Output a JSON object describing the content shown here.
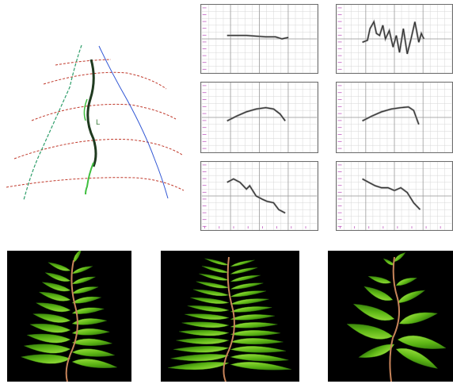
{
  "figure": {
    "sketch": {
      "label": "L",
      "colors": {
        "leaf_guides": "#c0392b",
        "leaf_guide_dots": "#e6c0c8",
        "left_outline": "#2e9e6a",
        "right_outline": "#2f55d4",
        "stem_dark": "#1f3a1f",
        "stem_light": "#3fbf3f"
      }
    },
    "graphs": [
      {
        "id": "graph-top-left",
        "curve": [
          [
            0.0,
            0.45
          ],
          [
            0.15,
            0.45
          ],
          [
            0.3,
            0.45
          ],
          [
            0.45,
            0.46
          ],
          [
            0.6,
            0.47
          ],
          [
            0.75,
            0.47
          ],
          [
            0.85,
            0.5
          ],
          [
            0.95,
            0.48
          ]
        ]
      },
      {
        "id": "graph-top-right",
        "curve": [
          [
            0.0,
            0.55
          ],
          [
            0.08,
            0.52
          ],
          [
            0.12,
            0.35
          ],
          [
            0.18,
            0.25
          ],
          [
            0.22,
            0.42
          ],
          [
            0.27,
            0.45
          ],
          [
            0.32,
            0.3
          ],
          [
            0.36,
            0.5
          ],
          [
            0.42,
            0.38
          ],
          [
            0.48,
            0.62
          ],
          [
            0.53,
            0.45
          ],
          [
            0.58,
            0.7
          ],
          [
            0.64,
            0.35
          ],
          [
            0.7,
            0.72
          ],
          [
            0.76,
            0.5
          ],
          [
            0.82,
            0.25
          ],
          [
            0.88,
            0.55
          ],
          [
            0.92,
            0.42
          ],
          [
            0.96,
            0.5
          ]
        ]
      },
      {
        "id": "graph-middle-left",
        "curve": [
          [
            0.0,
            0.55
          ],
          [
            0.15,
            0.48
          ],
          [
            0.3,
            0.42
          ],
          [
            0.45,
            0.38
          ],
          [
            0.6,
            0.36
          ],
          [
            0.72,
            0.38
          ],
          [
            0.82,
            0.45
          ],
          [
            0.9,
            0.55
          ]
        ]
      },
      {
        "id": "graph-middle-right",
        "curve": [
          [
            0.0,
            0.55
          ],
          [
            0.15,
            0.48
          ],
          [
            0.3,
            0.42
          ],
          [
            0.45,
            0.38
          ],
          [
            0.6,
            0.36
          ],
          [
            0.72,
            0.35
          ],
          [
            0.8,
            0.4
          ],
          [
            0.88,
            0.6
          ]
        ]
      },
      {
        "id": "graph-bottom-left",
        "curve": [
          [
            0.0,
            0.3
          ],
          [
            0.1,
            0.25
          ],
          [
            0.2,
            0.3
          ],
          [
            0.3,
            0.4
          ],
          [
            0.35,
            0.35
          ],
          [
            0.45,
            0.5
          ],
          [
            0.55,
            0.55
          ],
          [
            0.62,
            0.58
          ],
          [
            0.72,
            0.6
          ],
          [
            0.8,
            0.7
          ],
          [
            0.9,
            0.75
          ]
        ]
      },
      {
        "id": "graph-bottom-right",
        "curve": [
          [
            0.0,
            0.25
          ],
          [
            0.1,
            0.3
          ],
          [
            0.2,
            0.35
          ],
          [
            0.3,
            0.38
          ],
          [
            0.4,
            0.38
          ],
          [
            0.5,
            0.42
          ],
          [
            0.6,
            0.38
          ],
          [
            0.7,
            0.45
          ],
          [
            0.8,
            0.6
          ],
          [
            0.9,
            0.7
          ]
        ]
      }
    ],
    "colors": {
      "grid_major": "#9a9a9a",
      "grid_minor": "#d6d6d6",
      "axis_ticks": "#c05ac0",
      "curve": "#303030",
      "curve_shadow": "#a0a0a0",
      "leaf_light": "#a6e845",
      "leaf_mid": "#5cb515",
      "leaf_dark": "#2a6a0a",
      "stem": "#c8845a",
      "background_render": "#000000"
    }
  }
}
